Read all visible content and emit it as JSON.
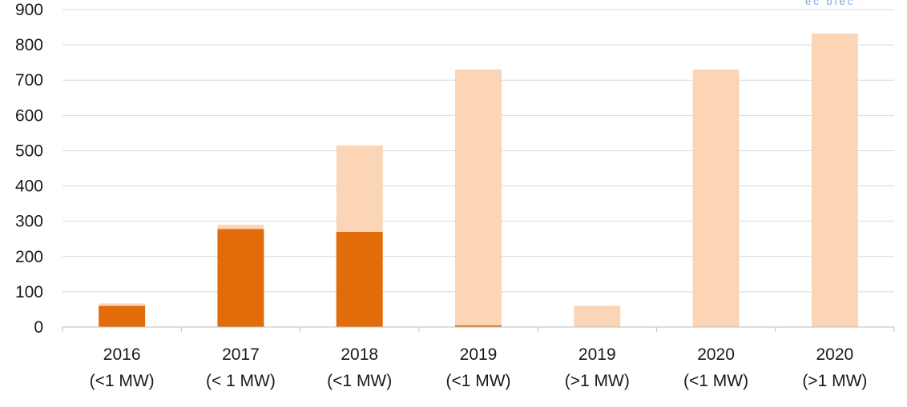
{
  "watermark": "ec blec",
  "chart_data": {
    "type": "bar",
    "stacked": true,
    "title": "",
    "xlabel": "",
    "ylabel": "",
    "ylim": [
      0,
      900
    ],
    "yticks": [
      0,
      100,
      200,
      300,
      400,
      500,
      600,
      700,
      800,
      900
    ],
    "grid": true,
    "legend": "none",
    "categories": [
      [
        "2016",
        "(<1 MW)"
      ],
      [
        "2017",
        "(< 1 MW)"
      ],
      [
        "2018",
        "(<1 MW)"
      ],
      [
        "2019",
        "(<1 MW)"
      ],
      [
        "2019",
        "(>1 MW)"
      ],
      [
        "2020",
        "(<1 MW)"
      ],
      [
        "2020",
        "(>1 MW)"
      ]
    ],
    "series": [
      {
        "color": "#e36c0a",
        "values": [
          60,
          278,
          270,
          5,
          0,
          0,
          0
        ]
      },
      {
        "color": "#fbd5b5",
        "values": [
          7,
          12,
          245,
          725,
          60,
          730,
          832
        ]
      }
    ]
  }
}
